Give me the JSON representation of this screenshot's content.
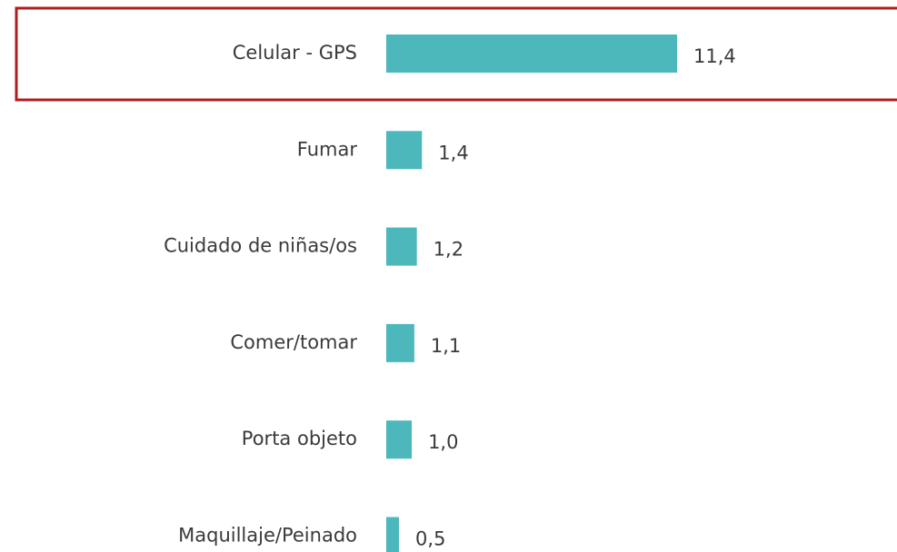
{
  "chart_data": {
    "type": "bar",
    "orientation": "horizontal",
    "categories": [
      "Celular - GPS",
      "Fumar",
      "Cuidado de niñas/os",
      "Comer/tomar",
      "Porta objeto",
      "Maquillaje/Peinado"
    ],
    "values": [
      11.4,
      1.4,
      1.2,
      1.1,
      1.0,
      0.5
    ],
    "value_labels": [
      "11,4",
      "1,4",
      "1,2",
      "1,1",
      "1,0",
      "0,5"
    ],
    "color": "#4db8bb"
  }
}
